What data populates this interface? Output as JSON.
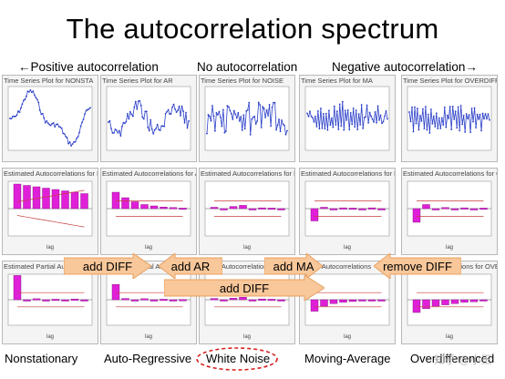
{
  "title": "The autocorrelation spectrum",
  "captions": {
    "positive": "←Positive autocorrelation",
    "none": "No autocorrelation",
    "negative": "Negative autocorrelation→"
  },
  "columns": [
    {
      "ts_title": "Time Series Plot for NONSTA",
      "acf_title": "Estimated Autocorrelations for NONS",
      "pacf_title": "Estimated Partial Autocorrelations",
      "bottom": "Nonstationary",
      "acf": [
        0.9,
        0.85,
        0.8,
        0.75,
        0.7,
        0.65,
        0.6,
        0.55
      ],
      "pacf": [
        0.95,
        -0.05,
        0.04,
        -0.03,
        0.02,
        -0.02,
        0.03,
        -0.01
      ]
    },
    {
      "ts_title": "Time Series Plot for AR",
      "acf_title": "Estimated Autocorrelations for AR",
      "pacf_title": "Estimated Partial Autocorrelations",
      "bottom": "Auto-Regressive",
      "acf": [
        0.6,
        0.4,
        0.25,
        0.15,
        0.1,
        0.06,
        0.04,
        0.02
      ],
      "pacf": [
        0.6,
        0.05,
        -0.05,
        0.04,
        -0.03,
        0.02,
        -0.02,
        0.01
      ]
    },
    {
      "ts_title": "Time Series Plot for NOISE",
      "acf_title": "Estimated Autocorrelations for NOISE",
      "pacf_title": "Partial Autocorrelations",
      "bottom": "White Noise",
      "acf": [
        0.05,
        -0.04,
        0.08,
        0.12,
        -0.05,
        0.03,
        0.02,
        -0.03
      ],
      "pacf": [
        0.05,
        -0.04,
        0.06,
        0.1,
        -0.04,
        0.03,
        0.02,
        -0.02
      ]
    },
    {
      "ts_title": "Time Series Plot for MA",
      "acf_title": "Estimated Autocorrelations for MA",
      "pacf_title": "Partial Autocorrelations",
      "bottom": "Moving-Average",
      "acf": [
        -0.45,
        0.05,
        -0.04,
        0.03,
        0.02,
        -0.02,
        0.03,
        -0.02
      ],
      "pacf": [
        -0.45,
        -0.25,
        -0.15,
        -0.1,
        -0.07,
        -0.05,
        -0.03,
        -0.02
      ]
    },
    {
      "ts_title": "Time Series Plot for OVERDIFF",
      "acf_title": "Estimated Autocorrelations for OVERDIF",
      "pacf_title": "Partial Autocorrelations for OVERDI",
      "bottom": "Overdifferenced",
      "acf": [
        -0.5,
        0.15,
        -0.05,
        0.04,
        -0.03,
        0.03,
        -0.02,
        0.02
      ],
      "pacf": [
        -0.5,
        -0.35,
        -0.25,
        -0.2,
        -0.15,
        -0.1,
        -0.08,
        -0.05
      ]
    }
  ],
  "arrows": [
    {
      "label": "add DIFF"
    },
    {
      "label": "add AR"
    },
    {
      "label": "add MA"
    },
    {
      "label": "remove DIFF"
    },
    {
      "label": "add DIFF"
    }
  ],
  "axis_words": {
    "lag": "lag"
  },
  "watermark": "知乎 @小王",
  "colors": {
    "series": "#2b3fc8",
    "bar": "#e020d8",
    "limit": "#c83c3c",
    "arrow_fill": "#f8c79a",
    "arrow_stroke": "#e9a060",
    "ellipse": "#d62020"
  }
}
